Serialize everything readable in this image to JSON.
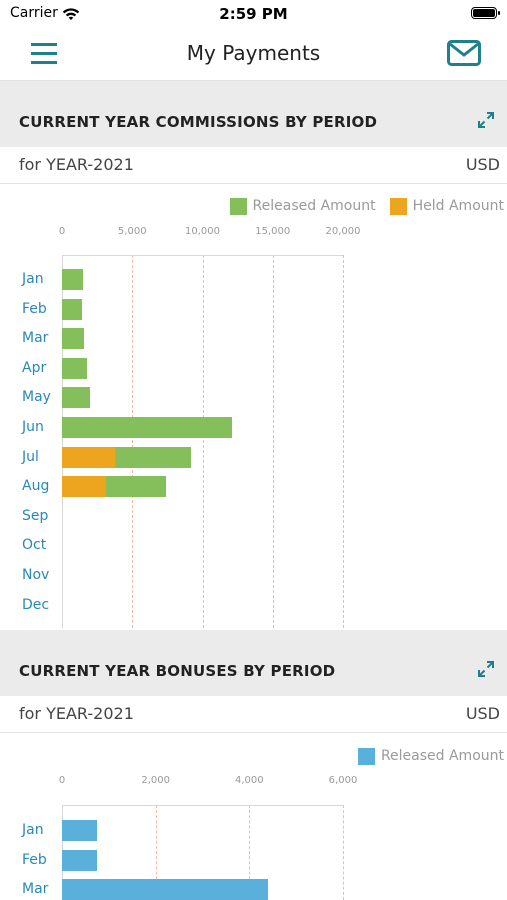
{
  "status_bar": {
    "carrier": "Carrier",
    "time": "2:59 PM"
  },
  "nav": {
    "title": "My Payments",
    "menu_icon": "hamburger-menu-icon",
    "mail_icon": "mail-icon"
  },
  "colors": {
    "accent": "#1f7f8c",
    "released": "#84bf5c",
    "held": "#eda41f",
    "bonus_released": "#5ab0db",
    "category": "#2a88b8"
  },
  "sections": [
    {
      "title": "CURRENT YEAR COMMISSIONS BY PERIOD",
      "year_label": "for YEAR-2021",
      "currency": "USD"
    },
    {
      "title": "CURRENT YEAR BONUSES BY PERIOD",
      "year_label": "for YEAR-2021",
      "currency": "USD"
    }
  ],
  "chart_data": [
    {
      "type": "bar",
      "orientation": "horizontal",
      "stacked": true,
      "title": "CURRENT YEAR COMMISSIONS BY PERIOD",
      "categories": [
        "Jan",
        "Feb",
        "Mar",
        "Apr",
        "May",
        "Jun",
        "Jul",
        "Aug",
        "Sep",
        "Oct",
        "Nov",
        "Dec"
      ],
      "series": [
        {
          "name": "Held Amount",
          "color": "#eda41f",
          "values": [
            0,
            0,
            0,
            0,
            0,
            0,
            3800,
            3100,
            0,
            0,
            0,
            0
          ]
        },
        {
          "name": "Released Amount",
          "color": "#84bf5c",
          "values": [
            1500,
            1400,
            1600,
            1800,
            2000,
            12100,
            5400,
            4300,
            0,
            0,
            0,
            0
          ]
        }
      ],
      "legend_order": [
        "Released Amount",
        "Held Amount"
      ],
      "xlim": [
        0,
        20000
      ],
      "xticks": [
        "0",
        "5,000",
        "10,000",
        "15,000",
        "20,000"
      ],
      "grid": true,
      "legend_position": "top-right"
    },
    {
      "type": "bar",
      "orientation": "horizontal",
      "stacked": true,
      "title": "CURRENT YEAR BONUSES BY PERIOD",
      "categories": [
        "Jan",
        "Feb",
        "Mar"
      ],
      "series": [
        {
          "name": "Released Amount",
          "color": "#5ab0db",
          "values": [
            750,
            750,
            4400
          ]
        }
      ],
      "legend_order": [
        "Released Amount"
      ],
      "xlim": [
        0,
        6000
      ],
      "xticks": [
        "0",
        "2,000",
        "4,000",
        "6,000"
      ],
      "grid": true,
      "legend_position": "top-right"
    }
  ]
}
